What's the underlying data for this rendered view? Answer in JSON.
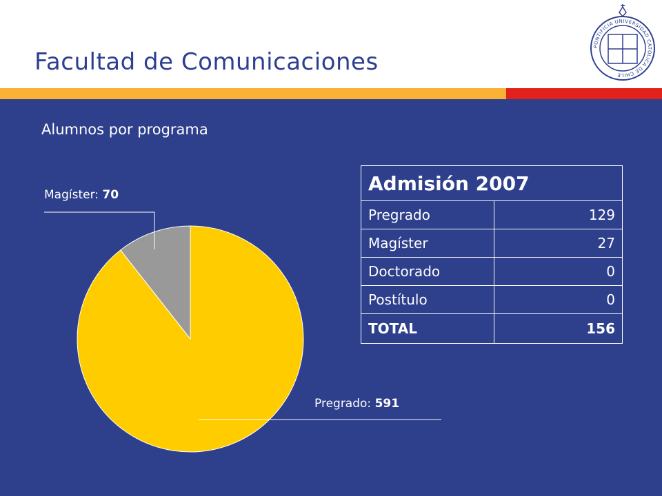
{
  "slide": {
    "title": "Facultad de Comunicaciones",
    "subtitle": "Alumnos por programa"
  },
  "colors": {
    "background": "#2e3f8c",
    "title": "#2e3f8f",
    "stripe_yellow": "#f9b233",
    "stripe_red": "#e3211b",
    "slice_pregrado": "#ffcc00",
    "slice_magister": "#999999"
  },
  "logo": {
    "icon": "university-seal-icon",
    "text": "PONTIFICIA UNIVERSIDAD CATÓLICA DE CHILE"
  },
  "chart_data": {
    "type": "pie",
    "slices": [
      {
        "name": "Pregrado",
        "value": 591
      },
      {
        "name": "Magíster",
        "value": 70
      }
    ],
    "labels": [
      {
        "name": "Magíster",
        "value": "70"
      },
      {
        "name": "Pregrado",
        "value": "591"
      }
    ]
  },
  "table": {
    "header": "Admisión 2007",
    "rows": [
      {
        "label": "Pregrado",
        "value": "129"
      },
      {
        "label": "Magíster",
        "value": "27"
      },
      {
        "label": "Doctorado",
        "value": "0"
      },
      {
        "label": "Postítulo",
        "value": "0"
      }
    ],
    "total": {
      "label": "TOTAL",
      "value": "156"
    }
  }
}
